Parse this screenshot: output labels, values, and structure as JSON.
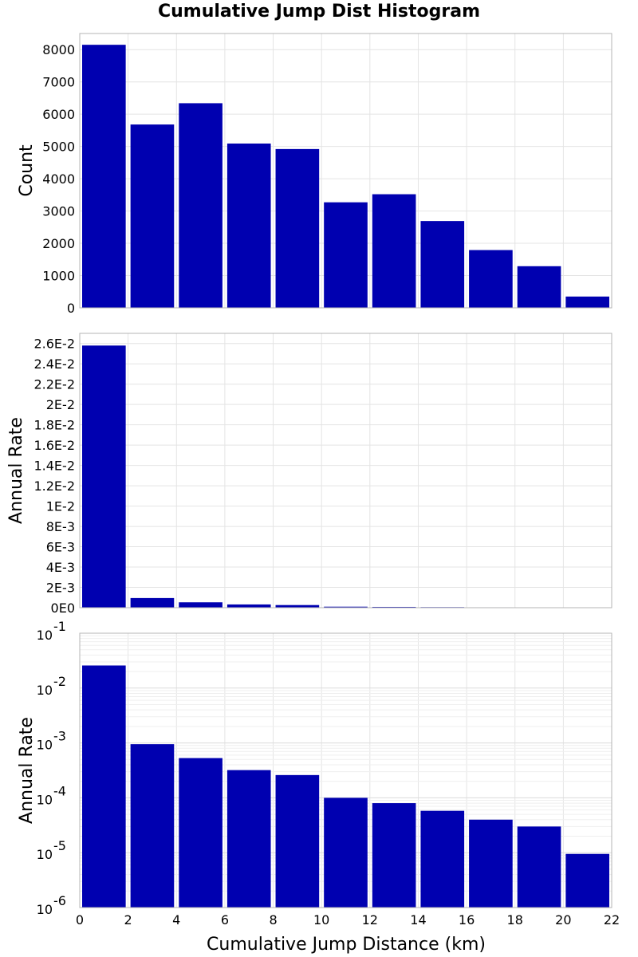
{
  "title": "Cumulative Jump Dist Histogram",
  "xlabel": "Cumulative Jump Distance (km)",
  "xticks": [
    "0",
    "2",
    "4",
    "6",
    "8",
    "10",
    "12",
    "14",
    "16",
    "18",
    "20",
    "22"
  ],
  "bar_color": "#0000b0",
  "chart_data": [
    {
      "type": "bar",
      "title": "Cumulative Jump Dist Histogram",
      "xlabel": "Cumulative Jump Distance (km)",
      "ylabel": "Count",
      "bin_edges": [
        0,
        2,
        4,
        6,
        8,
        10,
        12,
        14,
        16,
        18,
        20,
        22
      ],
      "values": [
        8150,
        5680,
        6340,
        5090,
        4920,
        3270,
        3520,
        2690,
        1790,
        1290,
        350
      ],
      "xlim": [
        0,
        22
      ],
      "ylim": [
        0,
        8500
      ],
      "yscale": "linear",
      "yticks": [
        0,
        1000,
        2000,
        3000,
        4000,
        5000,
        6000,
        7000,
        8000
      ],
      "ytick_labels": [
        "0",
        "1000",
        "2000",
        "3000",
        "4000",
        "5000",
        "6000",
        "7000",
        "8000"
      ],
      "grid": true
    },
    {
      "type": "bar",
      "xlabel": "Cumulative Jump Distance (km)",
      "ylabel": "Annual Rate",
      "bin_edges": [
        0,
        2,
        4,
        6,
        8,
        10,
        12,
        14,
        16,
        18,
        20,
        22
      ],
      "values": [
        0.0258,
        0.00095,
        0.00053,
        0.00032,
        0.00026,
        0.0001,
        8e-05,
        5.8e-05,
        4e-05,
        3e-05,
        9.5e-06
      ],
      "xlim": [
        0,
        22
      ],
      "ylim": [
        0,
        0.027
      ],
      "yscale": "linear",
      "yticks": [
        0,
        0.002,
        0.004,
        0.006,
        0.008,
        0.01,
        0.012,
        0.014,
        0.016,
        0.018,
        0.02,
        0.022,
        0.024,
        0.026
      ],
      "ytick_labels": [
        "0E0",
        "2E-3",
        "4E-3",
        "6E-3",
        "8E-3",
        "1E-2",
        "1.2E-2",
        "1.4E-2",
        "1.6E-2",
        "1.8E-2",
        "2E-2",
        "2.2E-2",
        "2.4E-2",
        "2.6E-2"
      ],
      "grid": true
    },
    {
      "type": "bar",
      "xlabel": "Cumulative Jump Distance (km)",
      "ylabel": "Annual Rate",
      "bin_edges": [
        0,
        2,
        4,
        6,
        8,
        10,
        12,
        14,
        16,
        18,
        20,
        22
      ],
      "values": [
        0.0258,
        0.00095,
        0.00053,
        0.00032,
        0.00026,
        0.0001,
        8e-05,
        5.8e-05,
        4e-05,
        3e-05,
        9.5e-06
      ],
      "xlim": [
        0,
        22
      ],
      "ylim": [
        1e-06,
        0.1
      ],
      "yscale": "log",
      "ytick_exponents": [
        "-6",
        "-5",
        "-4",
        "-3",
        "-2",
        "-1"
      ],
      "ytick_base": "10",
      "grid": true
    }
  ]
}
